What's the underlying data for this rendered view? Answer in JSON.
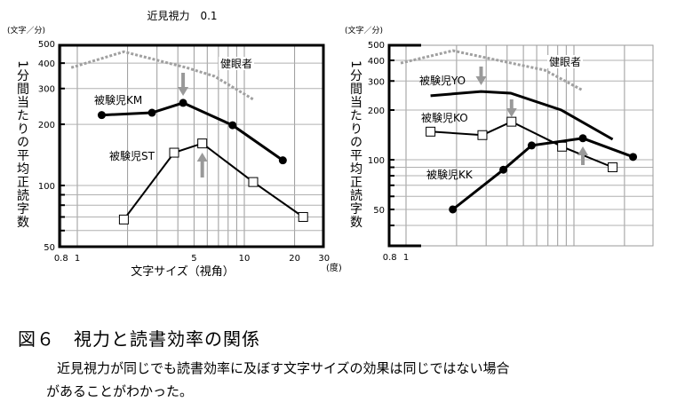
{
  "chart_data": [
    {
      "type": "line",
      "title": "近見視力　0.1",
      "ylabel": "1分間当たりの平均正読字数",
      "yunit": "(文字／分)",
      "xlabel": "文字サイズ（視角）",
      "xunit": "(度)",
      "xscale": "log",
      "yscale": "log",
      "xlim": [
        0.75,
        30
      ],
      "ylim": [
        48,
        500
      ],
      "xticks": [
        0.8,
        1,
        5,
        10,
        20,
        30
      ],
      "yticks": [
        50,
        100,
        200,
        300,
        400,
        500
      ],
      "grid": true,
      "series": [
        {
          "name": "健眼者",
          "style": "gray-dashed",
          "color": "#a0a0a0",
          "x": [
            0.92,
            1.9,
            4.5,
            6.6,
            11.5
          ],
          "y": [
            380,
            455,
            380,
            345,
            263
          ]
        },
        {
          "name": "被験児KM",
          "style": "bold-filled-circle",
          "color": "#000000",
          "x": [
            1.4,
            2.8,
            4.3,
            8.5,
            17
          ],
          "y": [
            222,
            228,
            255,
            198,
            133
          ]
        },
        {
          "name": "被験児ST",
          "style": "open-square",
          "color": "#000000",
          "x": [
            1.9,
            3.8,
            5.6,
            11.3,
            22.5
          ],
          "y": [
            68,
            145,
            161,
            104,
            70
          ]
        }
      ],
      "arrows": [
        {
          "direction": "down",
          "x": 4.3,
          "color": "#999999"
        },
        {
          "direction": "up",
          "x": 5.6,
          "color": "#999999"
        }
      ]
    },
    {
      "type": "line",
      "title": "",
      "ylabel": "1分間当たりの平均正読字数",
      "yunit": "(文字／分)",
      "xscale": "log",
      "yscale": "log",
      "xlim": [
        0.75,
        30
      ],
      "ylim": [
        30,
        500
      ],
      "xticks": [
        0.8,
        1
      ],
      "yticks": [
        50,
        100,
        200,
        300,
        400,
        500
      ],
      "grid": true,
      "series": [
        {
          "name": "健眼者",
          "style": "gray-dashed",
          "color": "#a0a0a0",
          "x": [
            0.93,
            1.9,
            4.5,
            6.7,
            11.3
          ],
          "y": [
            385,
            458,
            380,
            349,
            263
          ]
        },
        {
          "name": "被験児YO",
          "style": "bold-no-marker",
          "color": "#000000",
          "x": [
            1.4,
            2.8,
            4.2,
            8.4,
            17
          ],
          "y": [
            244,
            259,
            253,
            200,
            133
          ]
        },
        {
          "name": "被験児KO",
          "style": "open-square",
          "color": "#000000",
          "x": [
            1.4,
            2.85,
            4.25,
            8.5,
            17
          ],
          "y": [
            148,
            141,
            170,
            120,
            90
          ]
        },
        {
          "name": "被験児KK",
          "style": "bold-filled-circle",
          "color": "#000000",
          "x": [
            1.9,
            3.8,
            5.6,
            11.3,
            22.5
          ],
          "y": [
            50,
            87,
            122,
            135,
            104
          ]
        }
      ],
      "arrows": [
        {
          "direction": "down",
          "x": 2.8,
          "color": "#999999"
        },
        {
          "direction": "down",
          "x": 4.25,
          "color": "#999999"
        },
        {
          "direction": "up",
          "x": 11.3,
          "color": "#999999"
        }
      ]
    }
  ],
  "caption": {
    "title": "図６　視力と読書効率の関係",
    "line1": "近見視力が同じでも読書効率に及ぼす文字サイズの効果は同じではない場合",
    "line2": "があることがわかった。"
  }
}
